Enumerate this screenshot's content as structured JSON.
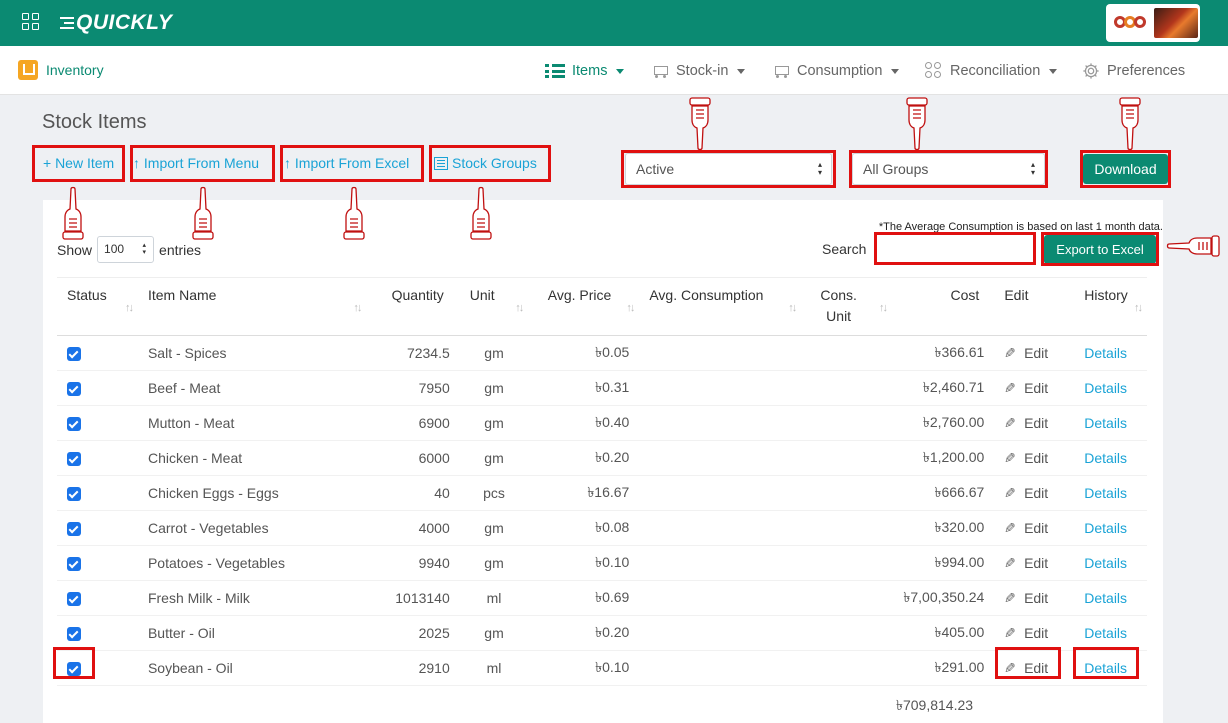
{
  "app": {
    "logo_text": "QUICKLY"
  },
  "nav": {
    "section_label": "Inventory",
    "items": [
      {
        "label": "Items",
        "active": true
      },
      {
        "label": "Stock-in"
      },
      {
        "label": "Consumption"
      },
      {
        "label": "Reconciliation"
      },
      {
        "label": "Preferences"
      }
    ]
  },
  "page": {
    "title": "Stock Items",
    "actions": {
      "new_item": "+ New Item",
      "import_menu": "↑ Import From Menu",
      "import_excel": "↑ Import From Excel",
      "stock_groups": "Stock Groups"
    },
    "status_filter": "Active",
    "group_filter": "All Groups",
    "download_label": "Download",
    "note": "*The Average Consumption is based on last 1 month data.",
    "show_label": "Show",
    "entries_value": "100",
    "entries_label": "entries",
    "search_label": "Search",
    "search_value": "",
    "export_label": "Export to Excel"
  },
  "table": {
    "headers": {
      "status": "Status",
      "name": "Item Name",
      "quantity": "Quantity",
      "unit": "Unit",
      "avg_price": "Avg. Price",
      "avg_consumption": "Avg. Consumption",
      "cons_unit_1": "Cons.",
      "cons_unit_2": "Unit",
      "cost": "Cost",
      "edit": "Edit",
      "history": "History"
    },
    "edit_label": "Edit",
    "details_label": "Details",
    "rows": [
      {
        "name": "Salt - Spices",
        "quantity": "7234.5",
        "unit": "gm",
        "avg_price": "৳0.05",
        "cost": "৳366.61"
      },
      {
        "name": "Beef - Meat",
        "quantity": "7950",
        "unit": "gm",
        "avg_price": "৳0.31",
        "cost": "৳2,460.71"
      },
      {
        "name": "Mutton - Meat",
        "quantity": "6900",
        "unit": "gm",
        "avg_price": "৳0.40",
        "cost": "৳2,760.00"
      },
      {
        "name": "Chicken - Meat",
        "quantity": "6000",
        "unit": "gm",
        "avg_price": "৳0.20",
        "cost": "৳1,200.00"
      },
      {
        "name": "Chicken Eggs - Eggs",
        "quantity": "40",
        "unit": "pcs",
        "avg_price": "৳16.67",
        "cost": "৳666.67"
      },
      {
        "name": "Carrot - Vegetables",
        "quantity": "4000",
        "unit": "gm",
        "avg_price": "৳0.08",
        "cost": "৳320.00"
      },
      {
        "name": "Potatoes - Vegetables",
        "quantity": "9940",
        "unit": "gm",
        "avg_price": "৳0.10",
        "cost": "৳994.00"
      },
      {
        "name": "Fresh Milk - Milk",
        "quantity": "1013140",
        "unit": "ml",
        "avg_price": "৳0.69",
        "cost": "৳7,00,350.24"
      },
      {
        "name": "Butter - Oil",
        "quantity": "2025",
        "unit": "gm",
        "avg_price": "৳0.20",
        "cost": "৳405.00"
      },
      {
        "name": "Soybean - Oil",
        "quantity": "2910",
        "unit": "ml",
        "avg_price": "৳0.10",
        "cost": "৳291.00"
      }
    ],
    "total_cost": "৳709,814.23"
  },
  "colors": {
    "brand": "#0b8a72",
    "link": "#1aa3d6",
    "highlight": "#e01010",
    "checkbox": "#1a73e8"
  }
}
